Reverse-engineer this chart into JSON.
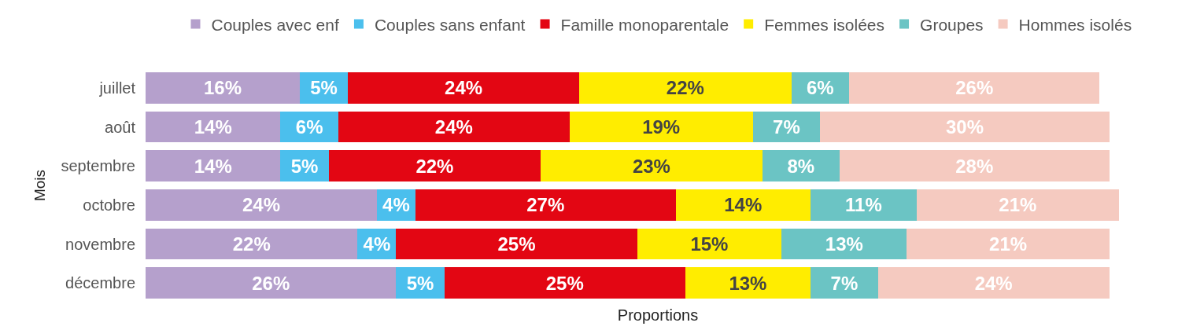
{
  "chart_data": {
    "type": "bar",
    "orientation": "horizontal",
    "stacked": true,
    "xlabel": "Proportions",
    "ylabel": "Mois",
    "legend": "top",
    "grid": false,
    "tick_labels": "y",
    "categories": [
      "juillet",
      "août",
      "septembre",
      "octobre",
      "novembre",
      "décembre"
    ],
    "series": [
      {
        "name": "Couples avec enf",
        "color": "#b5a0cc",
        "values": [
          16,
          14,
          14,
          24,
          22,
          26
        ],
        "value_labels": [
          "16%",
          "14%",
          "14%",
          "24%",
          "22%",
          "26%"
        ]
      },
      {
        "name": "Couples sans enfant",
        "color": "#4bbfed",
        "values": [
          5,
          6,
          5,
          4,
          4,
          5
        ],
        "value_labels": [
          "5%",
          "6%",
          "5%",
          "4%",
          "4%",
          "5%"
        ]
      },
      {
        "name": "Famille monoparentale",
        "color": "#e30613",
        "values": [
          24,
          24,
          22,
          27,
          25,
          25
        ],
        "value_labels": [
          "24%",
          "24%",
          "22%",
          "27%",
          "25%",
          "25%"
        ]
      },
      {
        "name": "Femmes isolées",
        "color": "#ffed00",
        "values": [
          22,
          19,
          23,
          14,
          15,
          13
        ],
        "value_labels": [
          "22%",
          "19%",
          "23%",
          "14%",
          "15%",
          "13%"
        ]
      },
      {
        "name": "Groupes",
        "color": "#6bc4c4",
        "values": [
          6,
          7,
          8,
          11,
          13,
          7
        ],
        "value_labels": [
          "6%",
          "7%",
          "8%",
          "11%",
          "13%",
          "7%"
        ]
      },
      {
        "name": "Hommes isolés",
        "color": "#f5cac0",
        "values": [
          26,
          30,
          28,
          21,
          21,
          24
        ],
        "value_labels": [
          "26%",
          "30%",
          "28%",
          "21%",
          "21%",
          "24%"
        ]
      }
    ]
  }
}
